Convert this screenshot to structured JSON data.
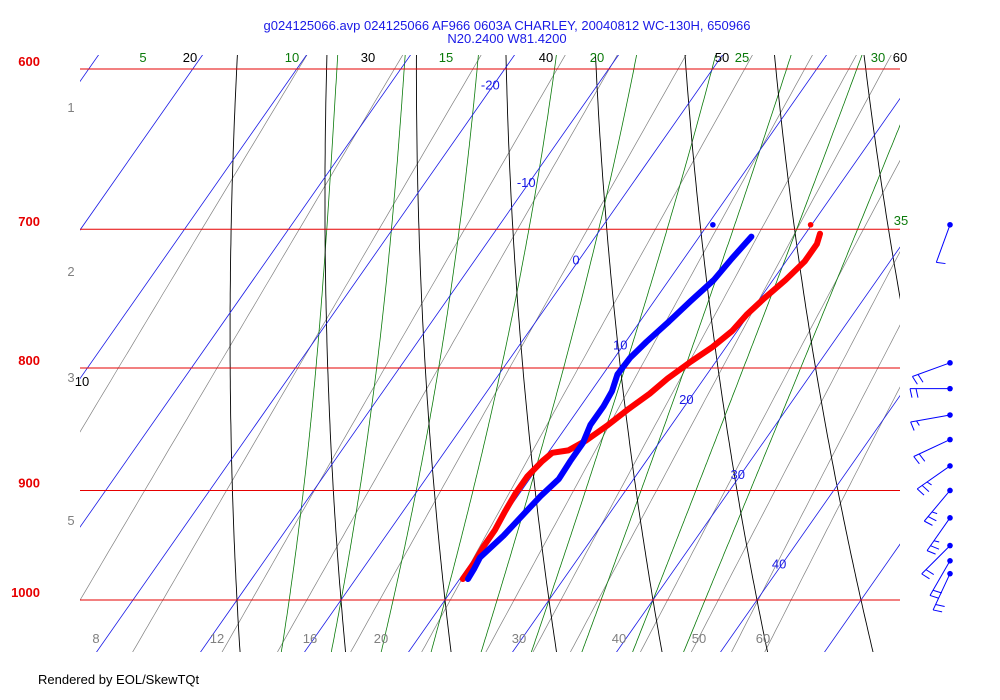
{
  "chart_data": {
    "type": "skew-t",
    "title": "g024125066.avp 024125066 AF966 0603A CHARLEY, 20040812 WC-130H, 650966",
    "subtitle": "N20.2400 W81.4200",
    "footer": "Rendered by EOL/SkewTQt",
    "colors": {
      "isobar": "#e60000",
      "isotherm": "#1a1ae6",
      "dry_adiabat": "#000000",
      "moist_adiabat": "#0a7a0a",
      "mixing_ratio": "#808080",
      "temperature": "#ff0000",
      "dewpoint": "#0000ff"
    },
    "isobars": [
      {
        "p": 600,
        "label": "600"
      },
      {
        "p": 700,
        "label": "700"
      },
      {
        "p": 800,
        "label": "800"
      },
      {
        "p": 900,
        "label": "900"
      },
      {
        "p": 1000,
        "label": "1000"
      }
    ],
    "isotherm_labels": [
      {
        "t": -20,
        "p": 612,
        "label": "-20"
      },
      {
        "t": -10,
        "p": 672,
        "label": "-10"
      },
      {
        "t": 0,
        "p": 724,
        "label": "0"
      },
      {
        "t": 10,
        "p": 786,
        "label": "10"
      },
      {
        "t": 20,
        "p": 828,
        "label": "20"
      },
      {
        "t": 30,
        "p": 890,
        "label": "30"
      },
      {
        "t": 40,
        "p": 970,
        "label": "40"
      }
    ],
    "dry_adiabat_labels": [
      "10",
      "20",
      "30",
      "40",
      "50",
      "60"
    ],
    "moist_adiabat_labels": [
      "5",
      "10",
      "15",
      "20",
      "25",
      "30",
      "35"
    ],
    "mixing_ratio_labels": [
      "1",
      "2",
      "3",
      "5",
      "8",
      "12",
      "16",
      "20",
      "30",
      "40",
      "50",
      "60"
    ],
    "temperature": [
      [
        703,
        21.4
      ],
      [
        710,
        21.8
      ],
      [
        722,
        21.8
      ],
      [
        735,
        21.2
      ],
      [
        748,
        20.4
      ],
      [
        760,
        19.8
      ],
      [
        772,
        19.5
      ],
      [
        784,
        18.7
      ],
      [
        795,
        17.6
      ],
      [
        808,
        16.5
      ],
      [
        820,
        15.8
      ],
      [
        832,
        14.8
      ],
      [
        845,
        13.9
      ],
      [
        858,
        12.8
      ],
      [
        866,
        11.8
      ],
      [
        868,
        10.4
      ],
      [
        875,
        10.0
      ],
      [
        888,
        9.6
      ],
      [
        902,
        9.6
      ],
      [
        918,
        9.8
      ],
      [
        935,
        10.1
      ],
      [
        950,
        10.1
      ],
      [
        965,
        10.3
      ],
      [
        980,
        10.3
      ]
    ],
    "dewpoint": [
      [
        705,
        15.0
      ],
      [
        720,
        14.6
      ],
      [
        735,
        14.3
      ],
      [
        750,
        13.5
      ],
      [
        765,
        12.8
      ],
      [
        780,
        12.0
      ],
      [
        792,
        11.5
      ],
      [
        805,
        11.4
      ],
      [
        818,
        12.0
      ],
      [
        830,
        12.2
      ],
      [
        845,
        12.2
      ],
      [
        860,
        12.7
      ],
      [
        875,
        12.7
      ],
      [
        890,
        12.8
      ],
      [
        905,
        12.2
      ],
      [
        920,
        11.8
      ],
      [
        940,
        11.3
      ],
      [
        960,
        10.5
      ],
      [
        970,
        10.7
      ],
      [
        980,
        10.8
      ]
    ],
    "points": [
      {
        "series": "dewpoint",
        "p": 697,
        "t": 10.5
      },
      {
        "series": "temperature",
        "p": 697,
        "t": 19.9
      }
    ],
    "wind_barbs": [
      {
        "p": 697,
        "dir": 200,
        "speed": 10
      },
      {
        "p": 796,
        "dir": 250,
        "speed": 20
      },
      {
        "p": 816,
        "dir": 270,
        "speed": 20
      },
      {
        "p": 837,
        "dir": 260,
        "speed": 15
      },
      {
        "p": 857,
        "dir": 245,
        "speed": 20
      },
      {
        "p": 879,
        "dir": 235,
        "speed": 25
      },
      {
        "p": 900,
        "dir": 220,
        "speed": 25
      },
      {
        "p": 924,
        "dir": 215,
        "speed": 25
      },
      {
        "p": 949,
        "dir": 225,
        "speed": 20
      },
      {
        "p": 963,
        "dir": 210,
        "speed": 20
      },
      {
        "p": 975,
        "dir": 205,
        "speed": 20
      }
    ]
  }
}
